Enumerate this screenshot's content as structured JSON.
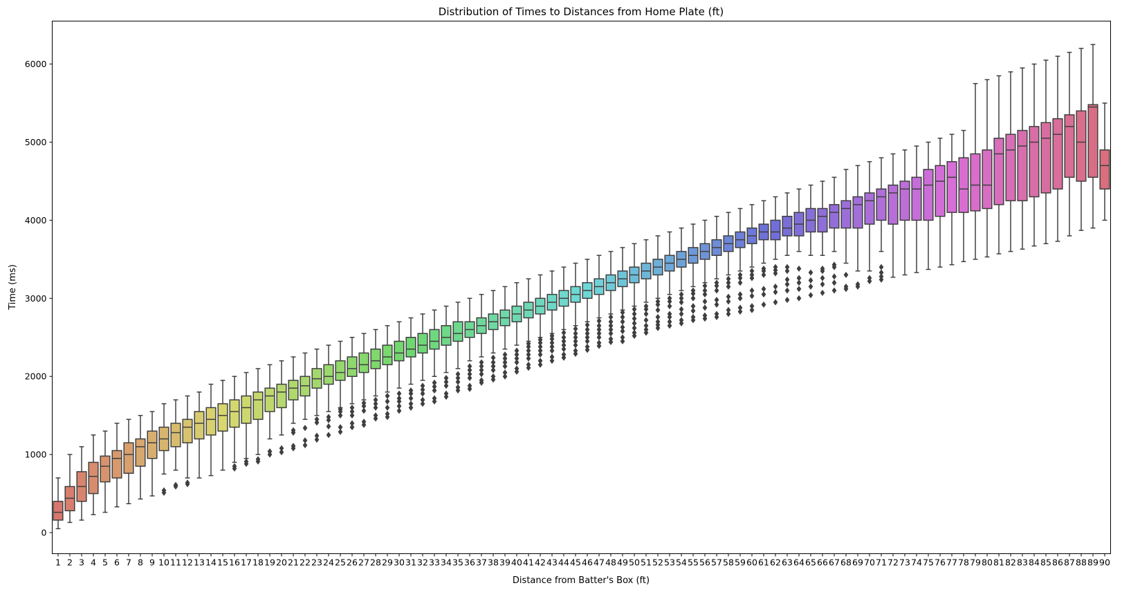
{
  "chart_data": {
    "type": "box",
    "title": "Distribution of Times to Distances from Home Plate (ft)",
    "xlabel": "Distance from Batter's Box (ft)",
    "ylabel": "Time (ms)",
    "ylim": [
      -270,
      6550
    ],
    "yticks": [
      0,
      1000,
      2000,
      3000,
      4000,
      5000,
      6000
    ],
    "grid": false,
    "legend": "none",
    "categories": [
      "1",
      "2",
      "3",
      "4",
      "5",
      "6",
      "7",
      "8",
      "9",
      "10",
      "11",
      "12",
      "13",
      "14",
      "15",
      "16",
      "17",
      "18",
      "19",
      "20",
      "21",
      "22",
      "23",
      "24",
      "25",
      "26",
      "27",
      "28",
      "29",
      "30",
      "31",
      "32",
      "33",
      "34",
      "35",
      "36",
      "37",
      "38",
      "39",
      "40",
      "41",
      "42",
      "43",
      "44",
      "45",
      "46",
      "47",
      "48",
      "49",
      "50",
      "51",
      "52",
      "53",
      "54",
      "55",
      "56",
      "57",
      "58",
      "59",
      "60",
      "61",
      "62",
      "63",
      "64",
      "65",
      "66",
      "67",
      "68",
      "69",
      "70",
      "71",
      "72",
      "73",
      "74",
      "75",
      "76",
      "77",
      "78",
      "79",
      "80",
      "81",
      "82",
      "83",
      "84",
      "85",
      "86",
      "87",
      "88",
      "89",
      "90"
    ],
    "boxes": [
      {
        "whislo": 50,
        "q1": 160,
        "med": 260,
        "q3": 400,
        "whishi": 700
      },
      {
        "whislo": 130,
        "q1": 280,
        "med": 440,
        "q3": 590,
        "whishi": 1000
      },
      {
        "whislo": 160,
        "q1": 400,
        "med": 590,
        "q3": 780,
        "whishi": 1100
      },
      {
        "whislo": 230,
        "q1": 500,
        "med": 720,
        "q3": 900,
        "whishi": 1250
      },
      {
        "whislo": 260,
        "q1": 650,
        "med": 850,
        "q3": 980,
        "whishi": 1300
      },
      {
        "whislo": 330,
        "q1": 700,
        "med": 950,
        "q3": 1050,
        "whishi": 1400
      },
      {
        "whislo": 370,
        "q1": 760,
        "med": 1000,
        "q3": 1150,
        "whishi": 1450
      },
      {
        "whislo": 430,
        "q1": 850,
        "med": 1100,
        "q3": 1200,
        "whishi": 1500
      },
      {
        "whislo": 470,
        "q1": 950,
        "med": 1150,
        "q3": 1300,
        "whishi": 1550
      },
      {
        "whislo": 750,
        "q1": 1050,
        "med": 1200,
        "q3": 1350,
        "whishi": 1650,
        "fliers": [
          510,
          540
        ]
      },
      {
        "whislo": 800,
        "q1": 1100,
        "med": 1280,
        "q3": 1400,
        "whishi": 1700,
        "fliers": [
          590,
          610
        ]
      },
      {
        "whislo": 700,
        "q1": 1150,
        "med": 1350,
        "q3": 1450,
        "whishi": 1750,
        "fliers": [
          620,
          640
        ]
      },
      {
        "whislo": 700,
        "q1": 1200,
        "med": 1400,
        "q3": 1550,
        "whishi": 1800
      },
      {
        "whislo": 730,
        "q1": 1250,
        "med": 1450,
        "q3": 1600,
        "whishi": 1900
      },
      {
        "whislo": 800,
        "q1": 1300,
        "med": 1500,
        "q3": 1650,
        "whishi": 1950
      },
      {
        "whislo": 900,
        "q1": 1350,
        "med": 1550,
        "q3": 1700,
        "whishi": 2000,
        "fliers": [
          820,
          850
        ]
      },
      {
        "whislo": 950,
        "q1": 1400,
        "med": 1600,
        "q3": 1750,
        "whishi": 2050,
        "fliers": [
          880,
          910
        ]
      },
      {
        "whislo": 1000,
        "q1": 1450,
        "med": 1700,
        "q3": 1800,
        "whishi": 2100,
        "fliers": [
          910,
          940
        ]
      },
      {
        "whislo": 1200,
        "q1": 1550,
        "med": 1750,
        "q3": 1850,
        "whishi": 2150,
        "fliers": [
          1000,
          1040
        ]
      },
      {
        "whislo": 1250,
        "q1": 1600,
        "med": 1800,
        "q3": 1900,
        "whishi": 2200,
        "fliers": [
          1030,
          1080
        ]
      },
      {
        "whislo": 1400,
        "q1": 1700,
        "med": 1850,
        "q3": 1950,
        "whishi": 2250,
        "fliers": [
          1080,
          1110,
          1280,
          1310
        ]
      },
      {
        "whislo": 1450,
        "q1": 1750,
        "med": 1880,
        "q3": 2000,
        "whishi": 2300,
        "fliers": [
          1120,
          1180,
          1340
        ]
      },
      {
        "whislo": 1500,
        "q1": 1850,
        "med": 1970,
        "q3": 2100,
        "whishi": 2350,
        "fliers": [
          1190,
          1240,
          1410,
          1450
        ]
      },
      {
        "whislo": 1550,
        "q1": 1900,
        "med": 2000,
        "q3": 2150,
        "whishi": 2400,
        "fliers": [
          1250,
          1360,
          1440,
          1480
        ]
      },
      {
        "whislo": 1600,
        "q1": 1950,
        "med": 2050,
        "q3": 2200,
        "whishi": 2450,
        "fliers": [
          1290,
          1350,
          1500,
          1550,
          1580
        ]
      },
      {
        "whislo": 1650,
        "q1": 2000,
        "med": 2100,
        "q3": 2250,
        "whishi": 2500,
        "fliers": [
          1350,
          1400,
          1500,
          1550,
          1600
        ]
      },
      {
        "whislo": 1700,
        "q1": 2050,
        "med": 2150,
        "q3": 2300,
        "whishi": 2550,
        "fliers": [
          1380,
          1420,
          1560,
          1620,
          1660
        ]
      },
      {
        "whislo": 1750,
        "q1": 2100,
        "med": 2200,
        "q3": 2350,
        "whishi": 2600,
        "fliers": [
          1460,
          1500,
          1600,
          1650,
          1700
        ]
      },
      {
        "whislo": 1800,
        "q1": 2150,
        "med": 2250,
        "q3": 2400,
        "whishi": 2650,
        "fliers": [
          1480,
          1520,
          1600,
          1680,
          1750
        ]
      },
      {
        "whislo": 1850,
        "q1": 2200,
        "med": 2300,
        "q3": 2450,
        "whishi": 2700,
        "fliers": [
          1560,
          1620,
          1680,
          1720,
          1780
        ]
      },
      {
        "whislo": 1900,
        "q1": 2250,
        "med": 2350,
        "q3": 2500,
        "whishi": 2750,
        "fliers": [
          1600,
          1650,
          1720,
          1780,
          1820
        ]
      },
      {
        "whislo": 1950,
        "q1": 2300,
        "med": 2400,
        "q3": 2550,
        "whishi": 2800,
        "fliers": [
          1650,
          1700,
          1780,
          1830,
          1880
        ]
      },
      {
        "whislo": 2000,
        "q1": 2350,
        "med": 2450,
        "q3": 2600,
        "whishi": 2850,
        "fliers": [
          1680,
          1720,
          1820,
          1870,
          1920
        ]
      },
      {
        "whislo": 2050,
        "q1": 2400,
        "med": 2500,
        "q3": 2650,
        "whishi": 2900,
        "fliers": [
          1740,
          1780,
          1880,
          1930,
          1980
        ]
      },
      {
        "whislo": 2100,
        "q1": 2450,
        "med": 2550,
        "q3": 2700,
        "whishi": 2950,
        "fliers": [
          1820,
          1860,
          1930,
          1980,
          2030
        ]
      },
      {
        "whislo": 2200,
        "q1": 2500,
        "med": 2600,
        "q3": 2700,
        "whishi": 3000,
        "fliers": [
          1840,
          1880,
          1980,
          2030,
          2080,
          2130
        ]
      },
      {
        "whislo": 2250,
        "q1": 2550,
        "med": 2650,
        "q3": 2750,
        "whishi": 3050,
        "fliers": [
          1920,
          1950,
          2030,
          2080,
          2130,
          2180
        ]
      },
      {
        "whislo": 2300,
        "q1": 2600,
        "med": 2700,
        "q3": 2800,
        "whishi": 3100,
        "fliers": [
          1960,
          2000,
          2080,
          2130,
          2180,
          2240
        ]
      },
      {
        "whislo": 2350,
        "q1": 2650,
        "med": 2750,
        "q3": 2850,
        "whishi": 3150,
        "fliers": [
          2000,
          2050,
          2130,
          2180,
          2230,
          2280
        ]
      },
      {
        "whislo": 2400,
        "q1": 2700,
        "med": 2800,
        "q3": 2900,
        "whishi": 3200,
        "fliers": [
          2060,
          2100,
          2180,
          2230,
          2280,
          2330
        ]
      },
      {
        "whislo": 2450,
        "q1": 2750,
        "med": 2850,
        "q3": 2950,
        "whishi": 3250,
        "fliers": [
          2110,
          2150,
          2230,
          2280,
          2330,
          2380,
          2420
        ]
      },
      {
        "whislo": 2500,
        "q1": 2800,
        "med": 2900,
        "q3": 3000,
        "whishi": 3300,
        "fliers": [
          2150,
          2200,
          2280,
          2330,
          2380,
          2430,
          2470
        ]
      },
      {
        "whislo": 2550,
        "q1": 2850,
        "med": 2950,
        "q3": 3050,
        "whishi": 3350,
        "fliers": [
          2200,
          2250,
          2330,
          2380,
          2430,
          2480,
          2520
        ]
      },
      {
        "whislo": 2600,
        "q1": 2900,
        "med": 3000,
        "q3": 3100,
        "whishi": 3400,
        "fliers": [
          2240,
          2280,
          2350,
          2400,
          2450,
          2500,
          2560
        ]
      },
      {
        "whislo": 2650,
        "q1": 2950,
        "med": 3050,
        "q3": 3150,
        "whishi": 3450,
        "fliers": [
          2290,
          2330,
          2400,
          2450,
          2500,
          2550,
          2610
        ]
      },
      {
        "whislo": 2700,
        "q1": 3000,
        "med": 3100,
        "q3": 3200,
        "whishi": 3500,
        "fliers": [
          2340,
          2380,
          2450,
          2500,
          2550,
          2600,
          2660
        ]
      },
      {
        "whislo": 2750,
        "q1": 3050,
        "med": 3150,
        "q3": 3250,
        "whishi": 3550,
        "fliers": [
          2390,
          2430,
          2500,
          2550,
          2600,
          2650,
          2710
        ]
      },
      {
        "whislo": 2800,
        "q1": 3100,
        "med": 3200,
        "q3": 3300,
        "whishi": 3600,
        "fliers": [
          2440,
          2480,
          2550,
          2600,
          2650,
          2700,
          2760
        ]
      },
      {
        "whislo": 2850,
        "q1": 3150,
        "med": 3250,
        "q3": 3350,
        "whishi": 3650,
        "fliers": [
          2450,
          2500,
          2580,
          2630,
          2700,
          2760,
          2820
        ]
      },
      {
        "whislo": 2900,
        "q1": 3200,
        "med": 3300,
        "q3": 3400,
        "whishi": 3700,
        "fliers": [
          2520,
          2560,
          2620,
          2680,
          2740,
          2800,
          2860
        ]
      },
      {
        "whislo": 2950,
        "q1": 3250,
        "med": 3350,
        "q3": 3450,
        "whishi": 3750,
        "fliers": [
          2560,
          2600,
          2650,
          2720,
          2800,
          2860,
          2900
        ]
      },
      {
        "whislo": 3000,
        "q1": 3300,
        "med": 3400,
        "q3": 3500,
        "whishi": 3800,
        "fliers": [
          2620,
          2660,
          2700,
          2760,
          2850,
          2920,
          2960
        ]
      },
      {
        "whislo": 3050,
        "q1": 3350,
        "med": 3450,
        "q3": 3550,
        "whishi": 3850,
        "fliers": [
          2650,
          2700,
          2760,
          2800,
          2900,
          2960,
          3000
        ]
      },
      {
        "whislo": 3100,
        "q1": 3400,
        "med": 3500,
        "q3": 3600,
        "whishi": 3900,
        "fliers": [
          2680,
          2720,
          2800,
          2860,
          2950,
          3000,
          3050
        ]
      },
      {
        "whislo": 3150,
        "q1": 3450,
        "med": 3550,
        "q3": 3650,
        "whishi": 3950,
        "fliers": [
          2720,
          2760,
          2840,
          2900,
          3000,
          3060,
          3100
        ]
      },
      {
        "whislo": 3200,
        "q1": 3500,
        "med": 3600,
        "q3": 3700,
        "whishi": 4000,
        "fliers": [
          2740,
          2780,
          2880,
          2960,
          3050,
          3100,
          3160
        ]
      },
      {
        "whislo": 3250,
        "q1": 3550,
        "med": 3650,
        "q3": 3750,
        "whishi": 4050,
        "fliers": [
          2760,
          2800,
          2920,
          2980,
          3100,
          3160,
          3200
        ]
      },
      {
        "whislo": 3300,
        "q1": 3600,
        "med": 3700,
        "q3": 3800,
        "whishi": 4100,
        "fliers": [
          2800,
          2850,
          2960,
          3020,
          3150,
          3200,
          3250
        ]
      },
      {
        "whislo": 3350,
        "q1": 3650,
        "med": 3750,
        "q3": 3850,
        "whishi": 4150,
        "fliers": [
          2830,
          2880,
          3000,
          3050,
          3200,
          3260,
          3300
        ]
      },
      {
        "whislo": 3400,
        "q1": 3700,
        "med": 3800,
        "q3": 3900,
        "whishi": 4200,
        "fliers": [
          2850,
          2900,
          3030,
          3100,
          3260,
          3300,
          3350
        ]
      },
      {
        "whislo": 3450,
        "q1": 3750,
        "med": 3850,
        "q3": 3950,
        "whishi": 4250,
        "fliers": [
          2920,
          3050,
          3120,
          3300,
          3350,
          3380
        ]
      },
      {
        "whislo": 3500,
        "q1": 3750,
        "med": 3850,
        "q3": 4000,
        "whishi": 4300,
        "fliers": [
          2950,
          3080,
          3150,
          3320,
          3360,
          3400
        ]
      },
      {
        "whislo": 3550,
        "q1": 3800,
        "med": 3900,
        "q3": 4050,
        "whishi": 4350,
        "fliers": [
          2980,
          3100,
          3180,
          3240,
          3350,
          3400
        ]
      },
      {
        "whislo": 3600,
        "q1": 3800,
        "med": 3950,
        "q3": 4100,
        "whishi": 4400,
        "fliers": [
          3000,
          3120,
          3200,
          3260,
          3380
        ]
      },
      {
        "whislo": 3550,
        "q1": 3850,
        "med": 4000,
        "q3": 4150,
        "whishi": 4450,
        "fliers": [
          3040,
          3150,
          3230,
          3330
        ]
      },
      {
        "whislo": 3550,
        "q1": 3850,
        "med": 4050,
        "q3": 4150,
        "whishi": 4500,
        "fliers": [
          3070,
          3180,
          3260,
          3350,
          3380
        ]
      },
      {
        "whislo": 3600,
        "q1": 3900,
        "med": 4100,
        "q3": 4200,
        "whishi": 4550,
        "fliers": [
          3100,
          3200,
          3280,
          3400,
          3430
        ]
      },
      {
        "whislo": 3450,
        "q1": 3900,
        "med": 4150,
        "q3": 4250,
        "whishi": 4650,
        "fliers": [
          3120,
          3150,
          3300
        ]
      },
      {
        "whislo": 3350,
        "q1": 3900,
        "med": 4200,
        "q3": 4300,
        "whishi": 4700,
        "fliers": [
          3150,
          3180
        ]
      },
      {
        "whislo": 3350,
        "q1": 3950,
        "med": 4250,
        "q3": 4350,
        "whishi": 4750,
        "fliers": [
          3220,
          3260
        ]
      },
      {
        "whislo": 3600,
        "q1": 4000,
        "med": 4300,
        "q3": 4400,
        "whishi": 4800,
        "fliers": [
          3240,
          3280,
          3330,
          3400
        ]
      },
      {
        "whislo": 3270,
        "q1": 3950,
        "med": 4350,
        "q3": 4450,
        "whishi": 4850
      },
      {
        "whislo": 3300,
        "q1": 4000,
        "med": 4400,
        "q3": 4500,
        "whishi": 4900
      },
      {
        "whislo": 3330,
        "q1": 4000,
        "med": 4400,
        "q3": 4550,
        "whishi": 4950
      },
      {
        "whislo": 3370,
        "q1": 4000,
        "med": 4450,
        "q3": 4650,
        "whishi": 5000
      },
      {
        "whislo": 3400,
        "q1": 4050,
        "med": 4500,
        "q3": 4700,
        "whishi": 5050
      },
      {
        "whislo": 3430,
        "q1": 4100,
        "med": 4550,
        "q3": 4750,
        "whishi": 5100
      },
      {
        "whislo": 3470,
        "q1": 4100,
        "med": 4400,
        "q3": 4800,
        "whishi": 5150
      },
      {
        "whislo": 3500,
        "q1": 4120,
        "med": 4450,
        "q3": 4850,
        "whishi": 5750
      },
      {
        "whislo": 3530,
        "q1": 4150,
        "med": 4450,
        "q3": 4900,
        "whishi": 5800
      },
      {
        "whislo": 3570,
        "q1": 4200,
        "med": 4850,
        "q3": 5050,
        "whishi": 5850
      },
      {
        "whislo": 3600,
        "q1": 4250,
        "med": 4900,
        "q3": 5100,
        "whishi": 5900
      },
      {
        "whislo": 3630,
        "q1": 4250,
        "med": 4950,
        "q3": 5150,
        "whishi": 5950
      },
      {
        "whislo": 3670,
        "q1": 4300,
        "med": 5000,
        "q3": 5200,
        "whishi": 6000
      },
      {
        "whislo": 3700,
        "q1": 4350,
        "med": 5050,
        "q3": 5250,
        "whishi": 6050
      },
      {
        "whislo": 3730,
        "q1": 4400,
        "med": 5100,
        "q3": 5300,
        "whishi": 6100
      },
      {
        "whislo": 3800,
        "q1": 4550,
        "med": 5200,
        "q3": 5350,
        "whishi": 6150
      },
      {
        "whislo": 3870,
        "q1": 4500,
        "med": 5000,
        "q3": 5400,
        "whishi": 6200
      },
      {
        "whislo": 3900,
        "q1": 4550,
        "med": 5450,
        "q3": 5480,
        "whishi": 6250
      },
      {
        "whislo": 4000,
        "q1": 4400,
        "med": 4700,
        "q3": 4900,
        "whishi": 5500
      }
    ]
  }
}
